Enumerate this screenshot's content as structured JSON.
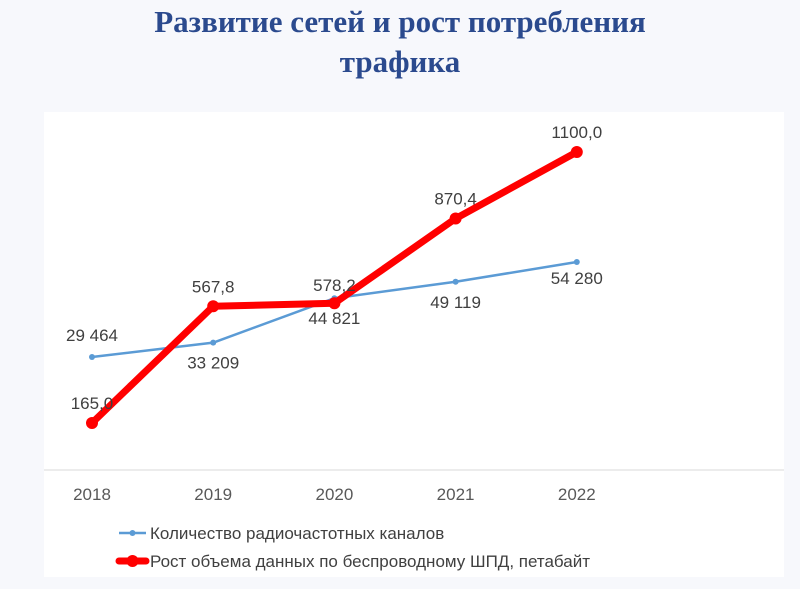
{
  "title_line1": "Развитие сетей и рост потребления",
  "title_line2": "трафика",
  "chart_data": {
    "type": "line",
    "categories": [
      "2018",
      "2019",
      "2020",
      "2021",
      "2022"
    ],
    "series": [
      {
        "name": "Количество радиочастотных каналов",
        "values": [
          29464,
          33209,
          44821,
          49119,
          54280
        ],
        "labels": [
          "29 464",
          "33 209",
          "44 821",
          "49 119",
          "54 280"
        ],
        "color": "#5b9bd5"
      },
      {
        "name": "Рост объема данных по беспроводному ШПД, петабайт",
        "values": [
          165.0,
          567.8,
          578.2,
          870.4,
          1100.0
        ],
        "labels": [
          "165,0",
          "567,8",
          "578,2",
          "870,4",
          "1100,0"
        ],
        "color": "#ff0000"
      }
    ],
    "legend_position": "bottom",
    "grid": false
  }
}
